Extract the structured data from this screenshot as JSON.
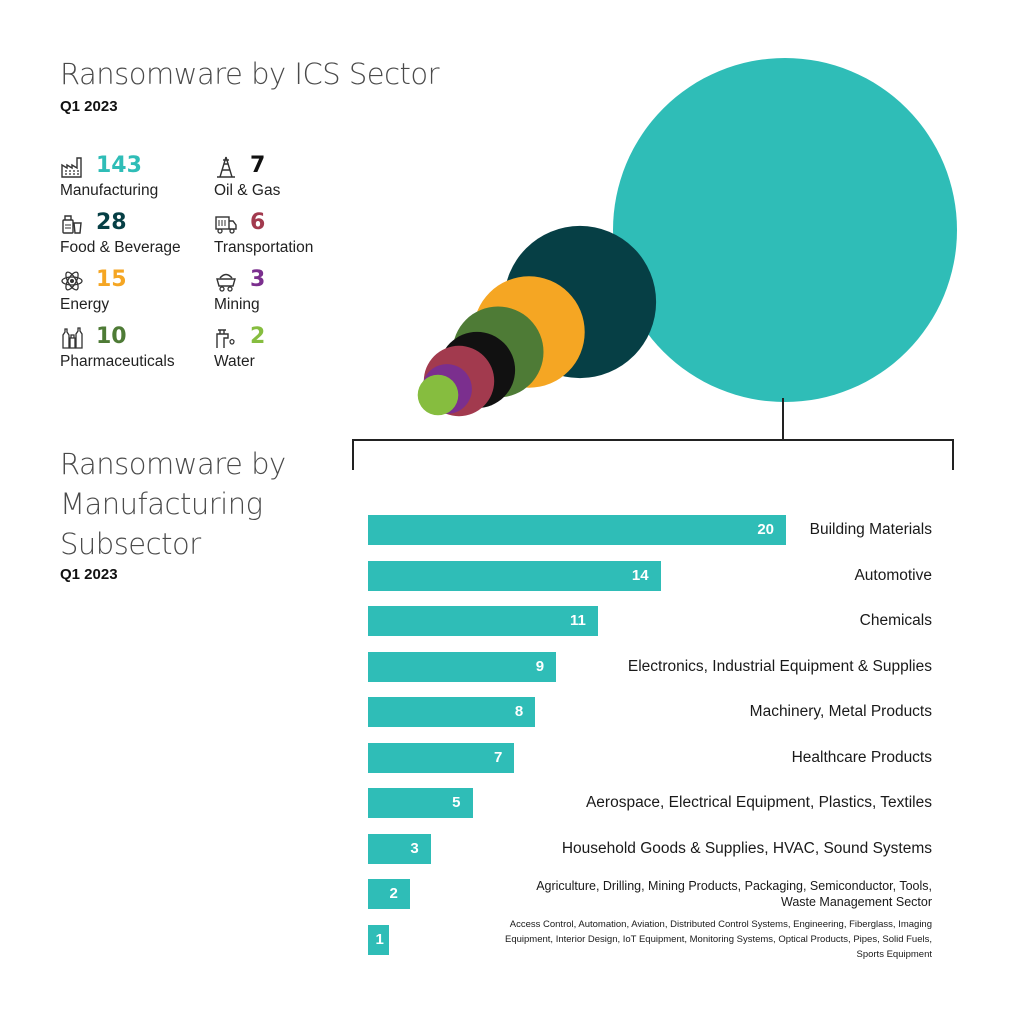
{
  "header": {
    "title": "Ransomware by ICS Sector",
    "period": "Q1 2023"
  },
  "sectors": [
    {
      "name": "Manufacturing",
      "count": "143",
      "color": "#2fbdb7",
      "icon": "factory-icon"
    },
    {
      "name": "Food & Beverage",
      "count": "28",
      "color": "#063f45",
      "icon": "food-icon"
    },
    {
      "name": "Energy",
      "count": "15",
      "color": "#f5a623",
      "icon": "atom-icon"
    },
    {
      "name": "Pharmaceuticals",
      "count": "10",
      "color": "#4e7b36",
      "icon": "pharma-bottles-icon"
    },
    {
      "name": "Oil & Gas",
      "count": "7",
      "color": "#111111",
      "icon": "oil-rig-icon"
    },
    {
      "name": "Transportation",
      "count": "6",
      "color": "#a23a4e",
      "icon": "truck-icon"
    },
    {
      "name": "Mining",
      "count": "3",
      "color": "#7b2f8e",
      "icon": "mining-cart-icon"
    },
    {
      "name": "Water",
      "count": "2",
      "color": "#86bd3f",
      "icon": "water-tap-icon"
    }
  ],
  "subsector": {
    "title": "Ransomware by Manufacturing Subsector",
    "period": "Q1 2023"
  },
  "chart_data": [
    {
      "type": "bubble",
      "categories": [
        "Manufacturing",
        "Food & Beverage",
        "Energy",
        "Pharmaceuticals",
        "Oil & Gas",
        "Transportation",
        "Mining",
        "Water"
      ],
      "values": [
        143,
        28,
        15,
        10,
        7,
        6,
        3,
        2
      ]
    },
    {
      "type": "bar",
      "orientation": "horizontal",
      "categories": [
        "Building Materials",
        "Automotive",
        "Chemicals",
        "Electronics, Industrial Equipment & Supplies",
        "Machinery, Metal Products",
        "Healthcare Products",
        "Aerospace, Electrical Equipment, Plastics, Textiles",
        "Household Goods & Supplies, HVAC, Sound Systems",
        "Agriculture, Drilling, Mining Products, Packaging, Semiconductor, Tools, Waste Management Sector",
        "Access Control, Automation, Aviation, Distributed Control Systems, Engineering, Fiberglass, Imaging Equipment, Interior Design, IoT Equipment, Monitoring Systems, Optical Products, Pipes, Solid Fuels, Sports Equipment"
      ],
      "values": [
        20,
        14,
        11,
        9,
        8,
        7,
        5,
        3,
        2,
        1
      ],
      "color": "#2fbdb7"
    }
  ]
}
